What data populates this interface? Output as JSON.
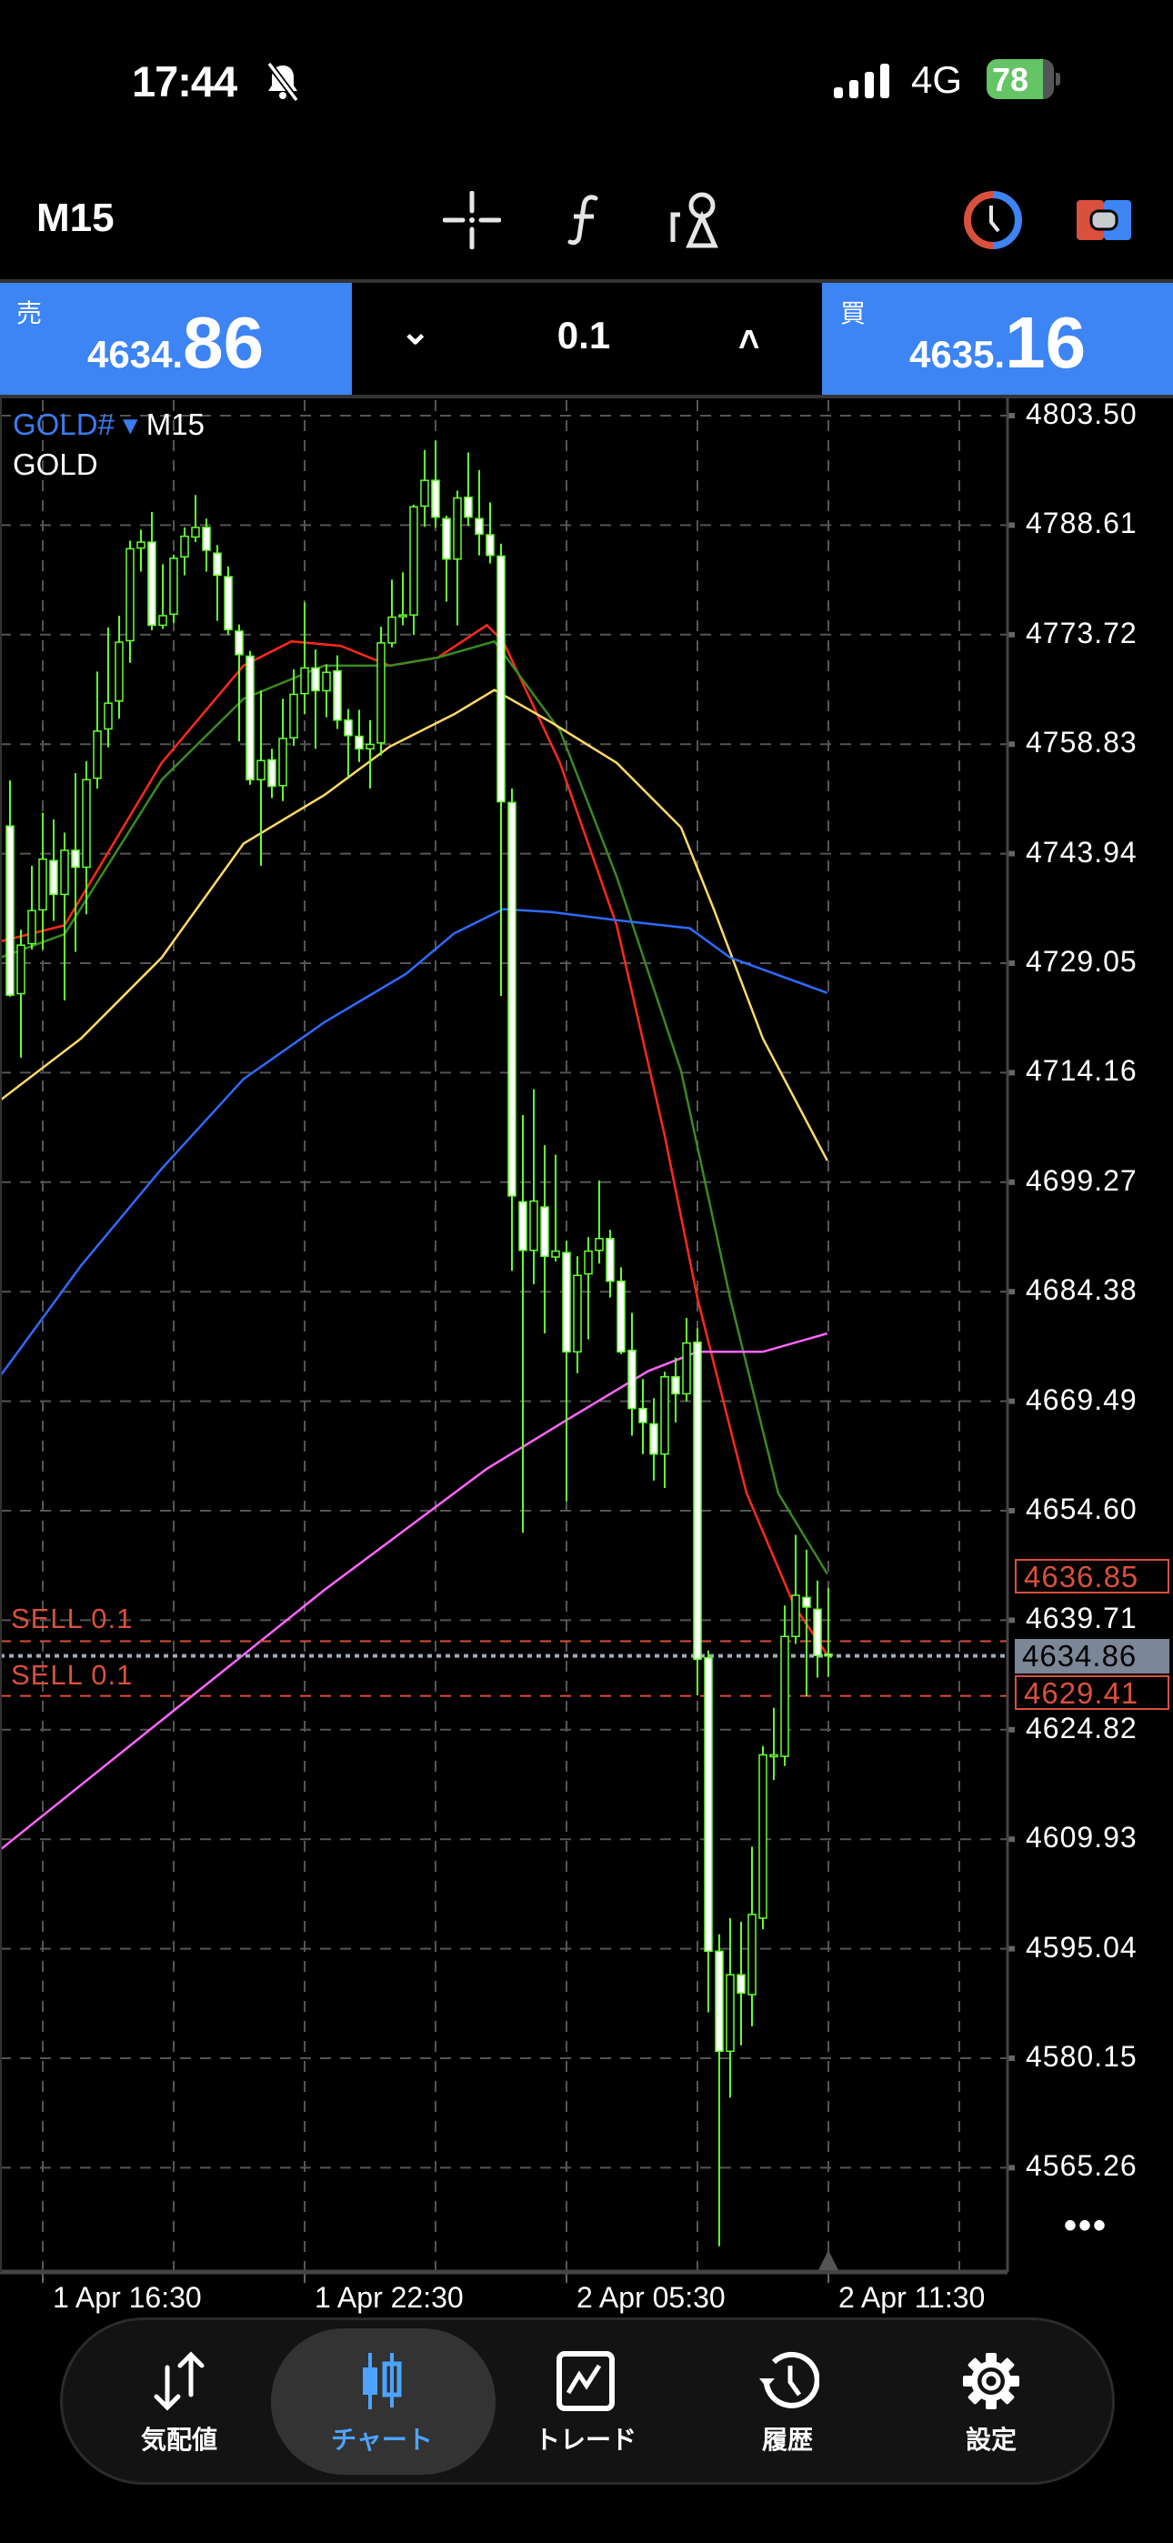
{
  "status_bar": {
    "time": "17:44",
    "network": "4G",
    "battery": "78",
    "icons": [
      "bell-slash-icon",
      "signal-icon",
      "battery-charging-icon"
    ]
  },
  "toolbar": {
    "timeframe": "M15",
    "icons": [
      "crosshair-icon",
      "indicator-f-icon",
      "objects-icon",
      "one-click-trading-icon",
      "order-mode-icon"
    ]
  },
  "trade_panel": {
    "sell": {
      "label": "売",
      "price_main": "4634.",
      "price_big": "86"
    },
    "buy": {
      "label": "買",
      "price_main": "4635.",
      "price_big": "16"
    },
    "lot": "0.1",
    "decrease_icon": "chevron-down-icon",
    "increase_icon": "chevron-up-icon"
  },
  "chart": {
    "symbol": "GOLD#",
    "symbol_arrow": "▾",
    "timeframe": "M15",
    "description": "GOLD",
    "more": "•••",
    "order_labels": [
      "SELL 0.1",
      "SELL 0.1"
    ],
    "price_tags": {
      "sell1": "4636.85",
      "bid": "4634.86",
      "sell2": "4629.41"
    },
    "colors": {
      "background": "#000000",
      "grid": "#555555",
      "bull_outline": "#66ff33",
      "bear_fill": "#ffffff",
      "sell_line": "#d9503c",
      "bid_line": "#a0aab8",
      "bid_tag": "#7b8696"
    }
  },
  "chart_data": {
    "type": "candlestick",
    "symbol": "GOLD#",
    "timeframe": "M15",
    "ylim": [
      4555,
      4806
    ],
    "grid": true,
    "y_ticks": [
      "4803.50",
      "4788.61",
      "4773.72",
      "4758.83",
      "4743.94",
      "4729.05",
      "4714.16",
      "4699.27",
      "4684.38",
      "4669.49",
      "4654.60",
      "4639.71",
      "4624.82",
      "4609.93",
      "4595.04",
      "4580.15",
      "4565.26"
    ],
    "x_ticks": [
      {
        "bar": 3,
        "label": "1 Apr 16:30"
      },
      {
        "bar": 27,
        "label": "1 Apr 22:30"
      },
      {
        "bar": 51,
        "label": "2 Apr 05:30"
      },
      {
        "bar": 75,
        "label": "2 Apr 11:30"
      }
    ],
    "candles_ohlc": [
      [
        4747.7,
        4753.9,
        4724.5,
        4724.7
      ],
      [
        4724.9,
        4733.6,
        4716.2,
        4731.5
      ],
      [
        4731.7,
        4742.3,
        4730.9,
        4736.2
      ],
      [
        4736.3,
        4749.5,
        4730.9,
        4743.2
      ],
      [
        4743.0,
        4748.6,
        4734.8,
        4738.4
      ],
      [
        4738.4,
        4746.8,
        4724.0,
        4744.4
      ],
      [
        4744.4,
        4754.9,
        4730.6,
        4742.1
      ],
      [
        4742.1,
        4756.5,
        4735.7,
        4754.0
      ],
      [
        4754.2,
        4768.7,
        4752.8,
        4760.6
      ],
      [
        4760.9,
        4774.7,
        4758.4,
        4764.4
      ],
      [
        4764.7,
        4776.3,
        4762.3,
        4772.7
      ],
      [
        4772.9,
        4786.5,
        4769.9,
        4785.4
      ],
      [
        4785.5,
        4788.0,
        4782.3,
        4786.3
      ],
      [
        4786.3,
        4790.4,
        4774.3,
        4775.0
      ],
      [
        4775.0,
        4783.3,
        4774.5,
        4776.3
      ],
      [
        4776.5,
        4784.6,
        4775.3,
        4784.1
      ],
      [
        4784.3,
        4788.3,
        4781.8,
        4787.1
      ],
      [
        4787.0,
        4792.7,
        4786.3,
        4788.3
      ],
      [
        4788.3,
        4789.5,
        4782.3,
        4785.2
      ],
      [
        4784.8,
        4785.9,
        4775.6,
        4781.8
      ],
      [
        4781.6,
        4783.0,
        4773.7,
        4774.4
      ],
      [
        4774.2,
        4775.1,
        4759.2,
        4771.0
      ],
      [
        4770.8,
        4771.5,
        4753.3,
        4754.0
      ],
      [
        4754.0,
        4766.1,
        4742.3,
        4756.6
      ],
      [
        4756.7,
        4758.2,
        4751.5,
        4753.1
      ],
      [
        4753.2,
        4765.0,
        4751.1,
        4759.6
      ],
      [
        4759.7,
        4769.0,
        4758.6,
        4765.6
      ],
      [
        4765.7,
        4778.1,
        4762.9,
        4769.2
      ],
      [
        4769.2,
        4771.7,
        4758.2,
        4766.1
      ],
      [
        4766.1,
        4769.7,
        4762.5,
        4768.6
      ],
      [
        4768.8,
        4770.9,
        4760.9,
        4762.1
      ],
      [
        4762.1,
        4763.6,
        4754.4,
        4760.0
      ],
      [
        4759.9,
        4763.5,
        4756.4,
        4758.2
      ],
      [
        4758.2,
        4762.1,
        4752.8,
        4758.8
      ],
      [
        4759.0,
        4774.8,
        4757.3,
        4772.6
      ],
      [
        4772.6,
        4781.2,
        4772.0,
        4776.1
      ],
      [
        4776.3,
        4782.2,
        4775.0,
        4776.4
      ],
      [
        4776.4,
        4791.4,
        4773.7,
        4791.1
      ],
      [
        4791.2,
        4798.8,
        4788.4,
        4794.7
      ],
      [
        4794.7,
        4800.1,
        4788.3,
        4789.7
      ],
      [
        4789.5,
        4789.9,
        4778.2,
        4784.0
      ],
      [
        4784.0,
        4793.3,
        4775.0,
        4792.3
      ],
      [
        4792.4,
        4798.5,
        4788.5,
        4789.7
      ],
      [
        4789.5,
        4796.1,
        4784.5,
        4787.4
      ],
      [
        4787.3,
        4791.7,
        4783.4,
        4784.5
      ],
      [
        4784.4,
        4786.1,
        4724.6,
        4751.0
      ],
      [
        4750.9,
        4752.8,
        4687.2,
        4697.4
      ],
      [
        4696.6,
        4708.4,
        4651.6,
        4690.0
      ],
      [
        4690.0,
        4711.9,
        4685.4,
        4696.7
      ],
      [
        4695.9,
        4704.3,
        4678.7,
        4689.2
      ],
      [
        4689.1,
        4703.0,
        4688.5,
        4689.9
      ],
      [
        4689.7,
        4691.3,
        4655.9,
        4676.2
      ],
      [
        4676.2,
        4689.2,
        4673.3,
        4686.6
      ],
      [
        4686.8,
        4691.8,
        4677.9,
        4689.9
      ],
      [
        4690.0,
        4699.5,
        4688.2,
        4691.6
      ],
      [
        4691.6,
        4692.8,
        4683.6,
        4685.8
      ],
      [
        4685.8,
        4687.7,
        4675.9,
        4676.2
      ],
      [
        4676.4,
        4681.5,
        4664.8,
        4668.5
      ],
      [
        4668.5,
        4672.5,
        4662.3,
        4666.6
      ],
      [
        4666.4,
        4669.9,
        4658.7,
        4662.3
      ],
      [
        4662.3,
        4673.5,
        4657.7,
        4672.8
      ],
      [
        4672.8,
        4675.4,
        4666.6,
        4670.5
      ],
      [
        4670.5,
        4680.8,
        4669.5,
        4677.4
      ],
      [
        4677.5,
        4679.4,
        4629.5,
        4634.4
      ],
      [
        4634.6,
        4635.6,
        4586.4,
        4594.7
      ],
      [
        4594.7,
        4597.0,
        4554.6,
        4581.1
      ],
      [
        4581.1,
        4599.2,
        4574.8,
        4591.5
      ],
      [
        4591.5,
        4598.7,
        4581.9,
        4589.0
      ],
      [
        4588.8,
        4608.9,
        4584.5,
        4599.7
      ],
      [
        4599.2,
        4622.6,
        4597.7,
        4621.4
      ],
      [
        4621.3,
        4627.8,
        4618.0,
        4621.4
      ],
      [
        4621.2,
        4641.7,
        4619.9,
        4637.5
      ],
      [
        4637.5,
        4651.3,
        4636.5,
        4643.1
      ],
      [
        4642.8,
        4649.3,
        4629.4,
        4641.5
      ],
      [
        4641.2,
        4645.1,
        4631.9,
        4634.9
      ],
      [
        4635.1,
        4644.1,
        4632.0,
        4634.86
      ]
    ],
    "moving_averages": [
      {
        "color": "#ff2a1a",
        "points": [
          [
            -0.9,
            4732.0
          ],
          [
            5.0,
            4734.2
          ],
          [
            13.9,
            4756.3
          ],
          [
            21.4,
            4769.5
          ],
          [
            25.8,
            4772.8
          ],
          [
            30.3,
            4772.2
          ],
          [
            34.8,
            4769.5
          ],
          [
            39.2,
            4770.6
          ],
          [
            43.7,
            4775.0
          ],
          [
            45.2,
            4772.8
          ],
          [
            50.4,
            4756.3
          ],
          [
            55.6,
            4734.2
          ],
          [
            60.0,
            4705.6
          ],
          [
            63.0,
            4683.5
          ],
          [
            67.5,
            4657.0
          ],
          [
            71.9,
            4641.6
          ],
          [
            74.9,
            4635.0
          ]
        ]
      },
      {
        "color": "#3a8a22",
        "points": [
          [
            -0.9,
            4729.8
          ],
          [
            5.0,
            4733.0
          ],
          [
            13.9,
            4754.0
          ],
          [
            21.4,
            4765.0
          ],
          [
            28.8,
            4769.5
          ],
          [
            34.8,
            4769.5
          ],
          [
            39.2,
            4770.6
          ],
          [
            44.4,
            4772.8
          ],
          [
            50.4,
            4760.7
          ],
          [
            55.6,
            4740.8
          ],
          [
            61.5,
            4714.4
          ],
          [
            66.0,
            4683.5
          ],
          [
            70.4,
            4657.0
          ],
          [
            74.9,
            4646.0
          ]
        ]
      },
      {
        "color": "#ffd966",
        "points": [
          [
            -0.9,
            4710.4
          ],
          [
            6.5,
            4718.8
          ],
          [
            13.9,
            4729.8
          ],
          [
            21.4,
            4745.3
          ],
          [
            28.8,
            4751.9
          ],
          [
            34.8,
            4758.5
          ],
          [
            40.7,
            4762.9
          ],
          [
            44.4,
            4766.2
          ],
          [
            49.6,
            4761.8
          ],
          [
            55.6,
            4756.3
          ],
          [
            61.5,
            4747.5
          ],
          [
            64.5,
            4736.4
          ],
          [
            69.0,
            4718.8
          ],
          [
            74.9,
            4702.2
          ]
        ]
      },
      {
        "color": "#2f6bff",
        "points": [
          [
            -0.9,
            4672.9
          ],
          [
            6.5,
            4687.9
          ],
          [
            13.9,
            4701.1
          ],
          [
            21.4,
            4713.3
          ],
          [
            28.8,
            4721.0
          ],
          [
            36.3,
            4727.6
          ],
          [
            40.7,
            4733.1
          ],
          [
            45.2,
            4736.4
          ],
          [
            49.6,
            4736.0
          ],
          [
            55.6,
            4734.9
          ],
          [
            62.3,
            4733.8
          ],
          [
            66.0,
            4729.8
          ],
          [
            74.9,
            4725.0
          ]
        ]
      },
      {
        "color": "#ff66ff",
        "points": [
          [
            -0.9,
            4608.5
          ],
          [
            13.9,
            4626.1
          ],
          [
            28.8,
            4643.8
          ],
          [
            43.7,
            4660.3
          ],
          [
            51.1,
            4667.0
          ],
          [
            58.5,
            4673.6
          ],
          [
            63.0,
            4676.2
          ],
          [
            69.0,
            4676.2
          ],
          [
            74.9,
            4678.7
          ]
        ]
      }
    ],
    "horizontal_lines": [
      {
        "price": 4636.85,
        "label": "SELL 0.1",
        "style": "dashed",
        "color": "#d9503c"
      },
      {
        "price": 4629.41,
        "label": "SELL 0.1",
        "style": "dashed",
        "color": "#d9503c"
      },
      {
        "price": 4634.86,
        "label": "bid",
        "style": "dotted",
        "color": "#a0aab8"
      }
    ]
  },
  "bottom_nav": {
    "items": [
      {
        "label": "気配値",
        "icon": "quotes-arrows-icon",
        "active": false
      },
      {
        "label": "チャート",
        "icon": "candlestick-icon",
        "active": true
      },
      {
        "label": "トレード",
        "icon": "trade-chart-icon",
        "active": false
      },
      {
        "label": "履歴",
        "icon": "history-icon",
        "active": false
      },
      {
        "label": "設定",
        "icon": "gear-icon",
        "active": false
      }
    ],
    "active_color": "#4da3ff"
  }
}
